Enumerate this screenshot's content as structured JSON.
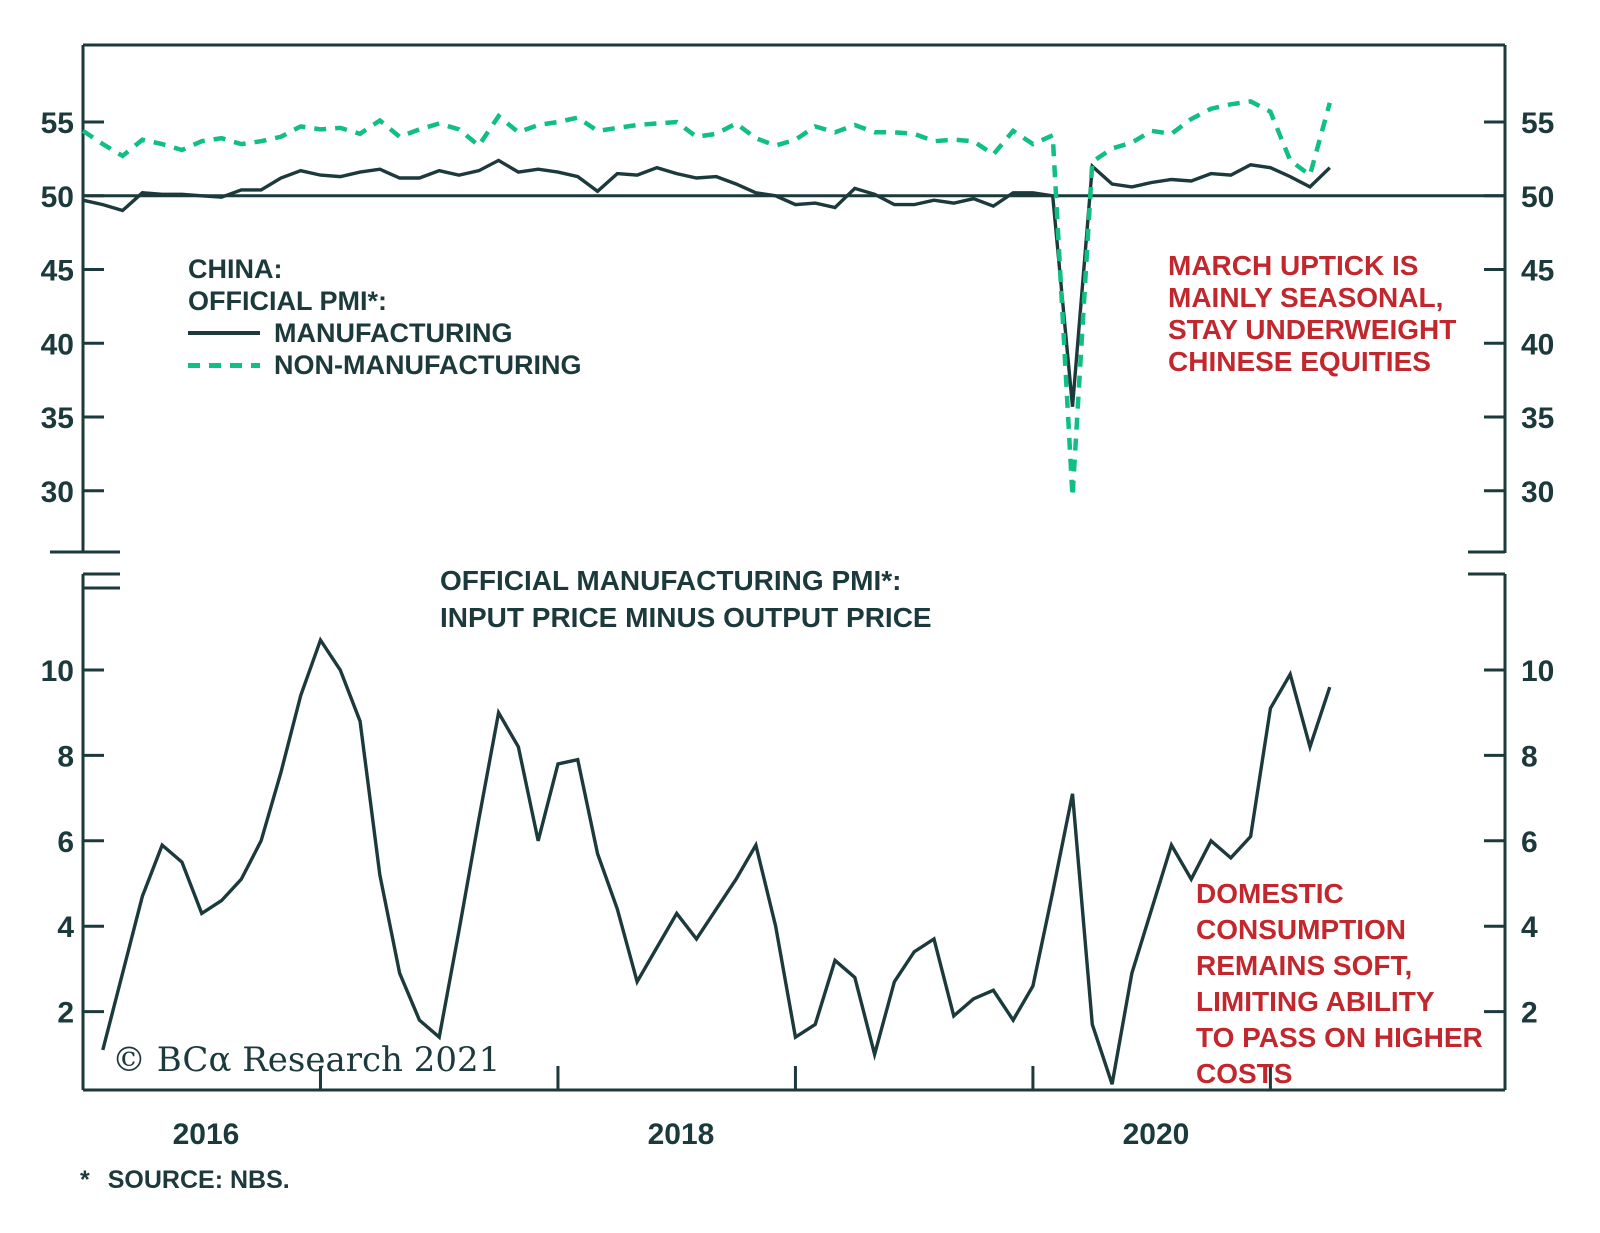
{
  "colors": {
    "line_dark": "#1c393c",
    "line_green": "#10bf82",
    "annotation_red": "#c2272d",
    "background": "#ffffff"
  },
  "chart_data": [
    {
      "id": "china-official-pmi",
      "type": "line",
      "panel": "top",
      "legend_title_lines": [
        "CHINA:",
        "OFFICIAL PMI*:"
      ],
      "yticks": [
        30,
        35,
        40,
        45,
        50,
        55
      ],
      "ylim": [
        26.0,
        60.3
      ],
      "reference_line": 50,
      "grid": false,
      "legend_position": "upper-left-inside",
      "annotation": {
        "color": "#c2272d",
        "lines": [
          "MARCH UPTICK IS",
          "MAINLY SEASONAL,",
          "STAY UNDERWEIGHT",
          "CHINESE EQUITIES"
        ]
      },
      "series": [
        {
          "name": "MANUFACTURING",
          "style": "solid",
          "color": "#1c393c",
          "start_month": "2015-12",
          "end_month": "2021-03",
          "values": [
            49.7,
            49.4,
            49.0,
            50.2,
            50.1,
            50.1,
            50.0,
            49.9,
            50.4,
            50.4,
            51.2,
            51.7,
            51.4,
            51.3,
            51.6,
            51.8,
            51.2,
            51.2,
            51.7,
            51.4,
            51.7,
            52.4,
            51.6,
            51.8,
            51.6,
            51.3,
            50.3,
            51.5,
            51.4,
            51.9,
            51.5,
            51.2,
            51.3,
            50.8,
            50.2,
            50.0,
            49.4,
            49.5,
            49.2,
            50.5,
            50.1,
            49.4,
            49.4,
            49.7,
            49.5,
            49.8,
            49.3,
            50.2,
            50.2,
            50.0,
            35.7,
            52.0,
            50.8,
            50.6,
            50.9,
            51.1,
            51.0,
            51.5,
            51.4,
            52.1,
            51.9,
            51.3,
            50.6,
            51.9
          ]
        },
        {
          "name": "NON-MANUFACTURING",
          "style": "dashed",
          "color": "#10bf82",
          "start_month": "2015-12",
          "end_month": "2021-03",
          "values": [
            54.4,
            53.5,
            52.7,
            53.8,
            53.5,
            53.1,
            53.7,
            53.9,
            53.5,
            53.7,
            54.0,
            54.7,
            54.5,
            54.6,
            54.2,
            55.1,
            54.0,
            54.5,
            54.9,
            54.5,
            53.4,
            55.4,
            54.3,
            54.8,
            55.0,
            55.3,
            54.4,
            54.6,
            54.8,
            54.9,
            55.0,
            54.0,
            54.2,
            54.9,
            53.9,
            53.4,
            53.8,
            54.7,
            54.3,
            54.8,
            54.3,
            54.3,
            54.2,
            53.7,
            53.8,
            53.7,
            52.8,
            54.4,
            53.5,
            54.1,
            29.6,
            52.3,
            53.2,
            53.6,
            54.4,
            54.2,
            55.2,
            55.9,
            56.2,
            56.4,
            55.7,
            52.4,
            51.4,
            56.3
          ]
        }
      ]
    },
    {
      "id": "input-minus-output-price",
      "type": "line",
      "panel": "bottom",
      "title_lines": [
        "OFFICIAL MANUFACTURING PMI*:",
        "INPUT PRICE MINUS OUTPUT PRICE"
      ],
      "yticks": [
        2,
        4,
        6,
        8,
        10
      ],
      "ylim": [
        0.15,
        12.3
      ],
      "grid": false,
      "annotation": {
        "color": "#c2272d",
        "lines": [
          "DOMESTIC",
          "CONSUMPTION",
          "REMAINS SOFT,",
          "LIMITING ABILITY",
          "TO PASS ON HIGHER",
          "COSTS"
        ]
      },
      "series": [
        {
          "name": "INPUT PRICE MINUS OUTPUT PRICE",
          "style": "solid",
          "color": "#1c393c",
          "start_month": "2016-01",
          "end_month": "2021-03",
          "values": [
            1.1,
            2.9,
            4.7,
            5.9,
            5.5,
            4.3,
            4.6,
            5.1,
            6.0,
            7.6,
            9.4,
            10.7,
            10.0,
            8.8,
            5.2,
            2.9,
            1.8,
            1.4,
            3.9,
            6.5,
            9.0,
            8.2,
            6.0,
            7.8,
            7.9,
            5.7,
            4.4,
            2.7,
            3.5,
            4.3,
            3.7,
            4.4,
            5.1,
            5.9,
            4.0,
            1.4,
            1.7,
            3.2,
            2.8,
            1.0,
            2.7,
            3.4,
            3.7,
            1.9,
            2.3,
            2.5,
            1.8,
            2.6,
            4.8,
            7.1,
            1.7,
            0.3,
            2.9,
            4.4,
            5.9,
            5.1,
            6.0,
            5.6,
            6.1,
            9.1,
            9.9,
            8.2,
            9.6
          ]
        }
      ]
    }
  ],
  "x_axis": {
    "year_labels": [
      "2016",
      "2018",
      "2020"
    ],
    "year_tick_boundaries": [
      "2017",
      "2018",
      "2019",
      "2020",
      "2021"
    ]
  },
  "footer": {
    "copyright": "© BCα Research 2021",
    "footnote_star": "*",
    "footnote": "SOURCE: NBS."
  }
}
